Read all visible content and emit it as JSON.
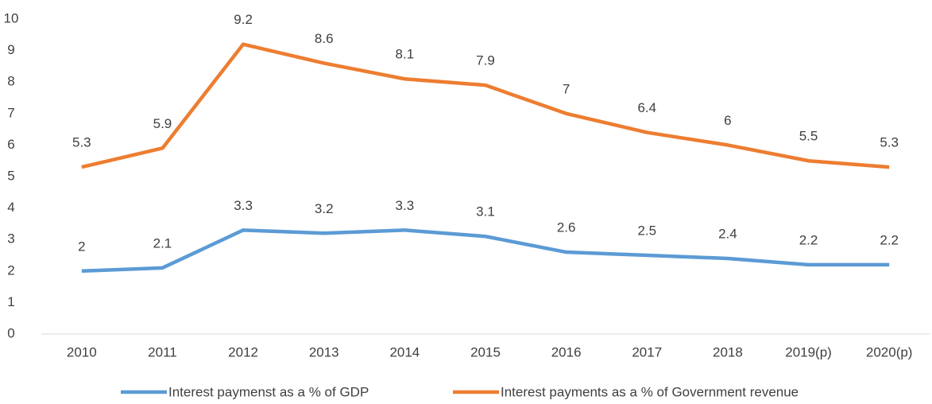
{
  "chart_data": {
    "type": "line",
    "categories": [
      "2010",
      "2011",
      "2012",
      "2013",
      "2014",
      "2015",
      "2016",
      "2017",
      "2018",
      "2019(p)",
      "2020(p)"
    ],
    "series": [
      {
        "name": "Interest paymenst as a % of GDP",
        "color": "#5b9bd5",
        "values": [
          2,
          2.1,
          3.3,
          3.2,
          3.3,
          3.1,
          2.6,
          2.5,
          2.4,
          2.2,
          2.2
        ]
      },
      {
        "name": "Interest payments as a % of Government revenue",
        "color": "#ed7d31",
        "values": [
          5.3,
          5.9,
          9.2,
          8.6,
          8.1,
          7.9,
          7,
          6.4,
          6,
          5.5,
          5.3
        ]
      }
    ],
    "ylim": [
      0,
      10
    ],
    "yticks": [
      0,
      1,
      2,
      3,
      4,
      5,
      6,
      7,
      8,
      9,
      10
    ],
    "grid": false,
    "legend": "bottom"
  }
}
